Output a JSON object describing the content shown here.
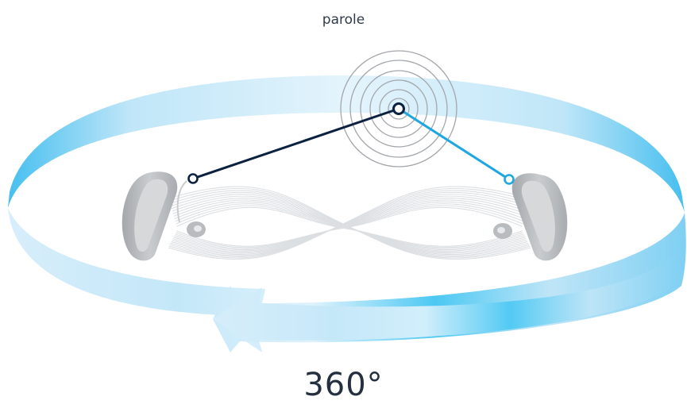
{
  "labels": {
    "sound_source": "parole",
    "rotation": "360°"
  },
  "colors": {
    "ring_light": "#dff2fc",
    "ring_mid": "#a9dcf5",
    "ring_strong": "#4cc2f0",
    "left_link": "#0c2140",
    "right_link": "#1ea7e1",
    "device": "#b9bcbf",
    "device_dark": "#9ea2a6",
    "waves": "#a3a7ab",
    "curves": "#dcdfe2"
  },
  "icons": {
    "left_device": "hearing-aid-icon",
    "right_device": "hearing-aid-icon",
    "source": "sound-waves-icon",
    "direction": "arrow-left-icon"
  }
}
